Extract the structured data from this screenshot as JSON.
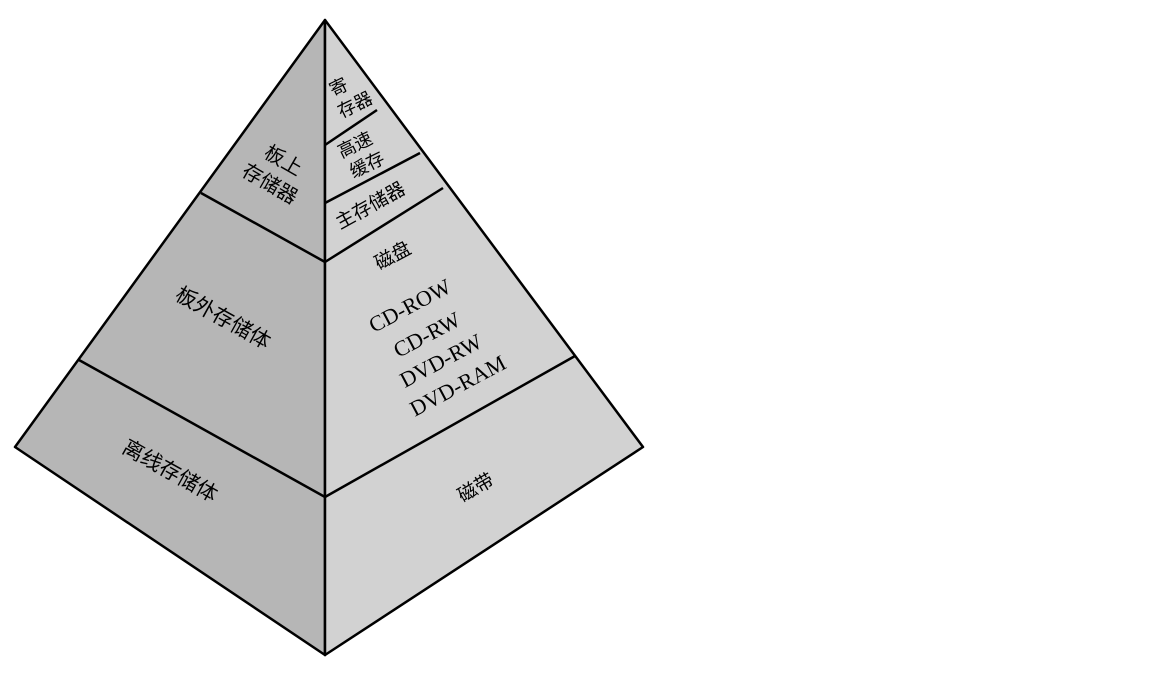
{
  "colors": {
    "left_face": "#b6b6b6",
    "right_face": "#d2d2d2",
    "outline": "#000000",
    "background": "#ffffff"
  },
  "pyramid": {
    "left_face": {
      "tier1": [
        "板上",
        "存储器"
      ],
      "tier2": "板外存储体",
      "tier3": "离线存储体"
    },
    "right_face": {
      "tier1a": [
        "寄",
        "存器"
      ],
      "tier1b": [
        "高速",
        "缓存"
      ],
      "tier1c": "主存储器",
      "tier2_title": "磁盘",
      "tier2_items": [
        "CD-ROW",
        "CD-RW",
        "DVD-RW",
        "DVD-RAM"
      ],
      "tier3": "磁带"
    }
  }
}
